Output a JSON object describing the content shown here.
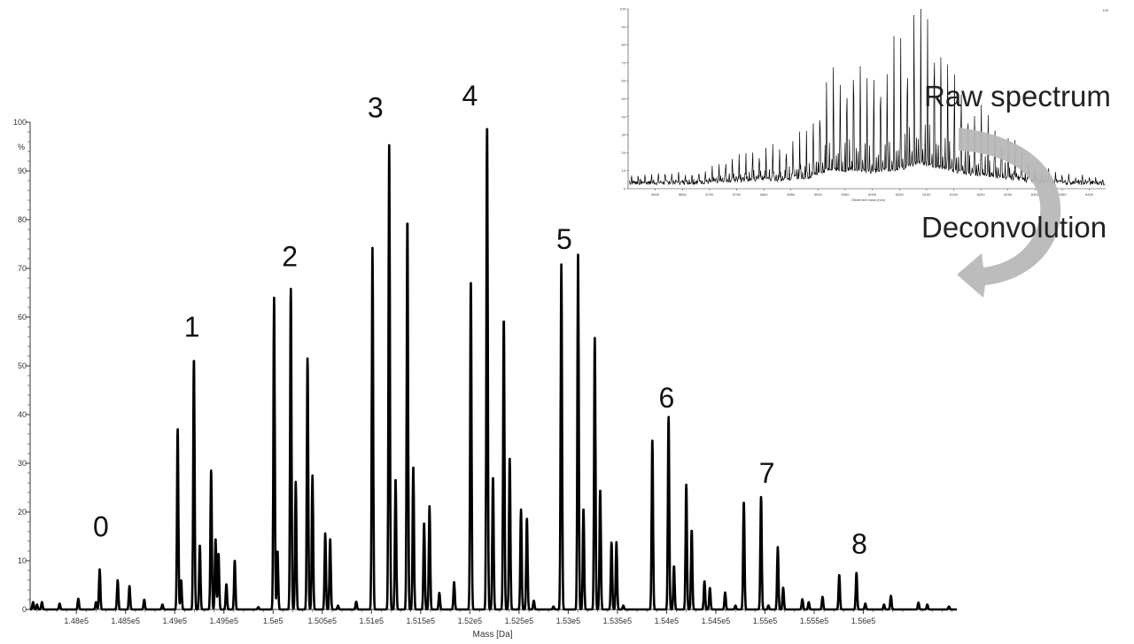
{
  "annotations": {
    "raw_spectrum": "Raw spectrum",
    "deconvolution": "Deconvolution"
  },
  "colors": {
    "trace": "#000000",
    "arrow": "#b8b8b8",
    "axis": "#333333"
  },
  "chart_data": [
    {
      "type": "line",
      "title": "",
      "xlabel": "Mass [Da]",
      "ylabel": "%",
      "xlim": [
        147530,
        156950
      ],
      "ylim": [
        0,
        100
      ],
      "x_ticks": [
        148000,
        148500,
        149000,
        149500,
        150000,
        150500,
        151000,
        151500,
        152000,
        152500,
        153000,
        153500,
        154000,
        154500,
        155000,
        155500,
        156000
      ],
      "x_tick_labels": [
        "1.48e5",
        "1.485e5",
        "1.49e5",
        "1.495e5",
        "1.5e5",
        "1.505e5",
        "1.51e5",
        "1.515e5",
        "1.52e5",
        "1.525e5",
        "1.53e5",
        "1.535e5",
        "1.54e5",
        "1.545e5",
        "1.55e5",
        "1.555e5",
        "1.56e5"
      ],
      "y_ticks": [
        0,
        10,
        20,
        30,
        40,
        50,
        60,
        70,
        80,
        90,
        100
      ],
      "grid": false,
      "peak_group_labels": [
        {
          "text": "0",
          "mass": 148250,
          "y": 15
        },
        {
          "text": "1",
          "mass": 149175,
          "y": 56
        },
        {
          "text": "2",
          "mass": 150170,
          "y": 70.5
        },
        {
          "text": "3",
          "mass": 151040,
          "y": 101
        },
        {
          "text": "4",
          "mass": 152000,
          "y": 103.5
        },
        {
          "text": "5",
          "mass": 152960,
          "y": 74
        },
        {
          "text": "6",
          "mass": 154000,
          "y": 41.5
        },
        {
          "text": "7",
          "mass": 155020,
          "y": 26
        },
        {
          "text": "8",
          "mass": 155960,
          "y": 11.5
        }
      ],
      "peaks": [
        {
          "x": 147560,
          "y": 1.5
        },
        {
          "x": 147600,
          "y": 1.0
        },
        {
          "x": 147650,
          "y": 1.5
        },
        {
          "x": 147830,
          "y": 1.2
        },
        {
          "x": 148020,
          "y": 2.2
        },
        {
          "x": 148200,
          "y": 1.5
        },
        {
          "x": 148237,
          "y": 8.3
        },
        {
          "x": 148420,
          "y": 6.0
        },
        {
          "x": 148540,
          "y": 4.8
        },
        {
          "x": 148690,
          "y": 2.0
        },
        {
          "x": 148875,
          "y": 1.0
        },
        {
          "x": 149030,
          "y": 37.0
        },
        {
          "x": 149065,
          "y": 6.0
        },
        {
          "x": 149195,
          "y": 51.5
        },
        {
          "x": 149255,
          "y": 13.2
        },
        {
          "x": 149370,
          "y": 28.5
        },
        {
          "x": 149415,
          "y": 14.5
        },
        {
          "x": 149445,
          "y": 11.5
        },
        {
          "x": 149525,
          "y": 5.2
        },
        {
          "x": 149610,
          "y": 10.0
        },
        {
          "x": 149850,
          "y": 0.5
        },
        {
          "x": 150010,
          "y": 64.0
        },
        {
          "x": 150045,
          "y": 12.0
        },
        {
          "x": 150180,
          "y": 65.8
        },
        {
          "x": 150230,
          "y": 26.2
        },
        {
          "x": 150350,
          "y": 51.5
        },
        {
          "x": 150400,
          "y": 27.5
        },
        {
          "x": 150530,
          "y": 15.6
        },
        {
          "x": 150580,
          "y": 14.4
        },
        {
          "x": 150660,
          "y": 0.8
        },
        {
          "x": 150845,
          "y": 1.6
        },
        {
          "x": 151010,
          "y": 74.2
        },
        {
          "x": 151180,
          "y": 95.3
        },
        {
          "x": 151245,
          "y": 26.8
        },
        {
          "x": 151365,
          "y": 80.0
        },
        {
          "x": 151425,
          "y": 29.4
        },
        {
          "x": 151535,
          "y": 17.8
        },
        {
          "x": 151590,
          "y": 21.2
        },
        {
          "x": 151690,
          "y": 3.4
        },
        {
          "x": 151840,
          "y": 5.6
        },
        {
          "x": 152010,
          "y": 67.0
        },
        {
          "x": 152175,
          "y": 99.6
        },
        {
          "x": 152235,
          "y": 27.2
        },
        {
          "x": 152345,
          "y": 59.7
        },
        {
          "x": 152405,
          "y": 31.2
        },
        {
          "x": 152520,
          "y": 20.5
        },
        {
          "x": 152580,
          "y": 18.6
        },
        {
          "x": 152650,
          "y": 1.8
        },
        {
          "x": 152850,
          "y": 0.6
        },
        {
          "x": 152930,
          "y": 70.8
        },
        {
          "x": 153100,
          "y": 72.8
        },
        {
          "x": 153155,
          "y": 20.7
        },
        {
          "x": 153270,
          "y": 55.7
        },
        {
          "x": 153325,
          "y": 24.6
        },
        {
          "x": 153440,
          "y": 13.7
        },
        {
          "x": 153490,
          "y": 13.8
        },
        {
          "x": 153560,
          "y": 0.8
        },
        {
          "x": 153855,
          "y": 35.0
        },
        {
          "x": 154020,
          "y": 39.5
        },
        {
          "x": 154075,
          "y": 8.9
        },
        {
          "x": 154200,
          "y": 25.6
        },
        {
          "x": 154255,
          "y": 16.3
        },
        {
          "x": 154385,
          "y": 5.8
        },
        {
          "x": 154440,
          "y": 4.4
        },
        {
          "x": 154595,
          "y": 3.5
        },
        {
          "x": 154700,
          "y": 0.8
        },
        {
          "x": 154785,
          "y": 22.1
        },
        {
          "x": 154960,
          "y": 23.1
        },
        {
          "x": 155035,
          "y": 0.8
        },
        {
          "x": 155130,
          "y": 12.8
        },
        {
          "x": 155185,
          "y": 4.5
        },
        {
          "x": 155380,
          "y": 2.1
        },
        {
          "x": 155445,
          "y": 1.5
        },
        {
          "x": 155585,
          "y": 2.6
        },
        {
          "x": 155755,
          "y": 7.1
        },
        {
          "x": 155930,
          "y": 7.5
        },
        {
          "x": 156020,
          "y": 1.2
        },
        {
          "x": 156210,
          "y": 1.0
        },
        {
          "x": 156280,
          "y": 2.8
        },
        {
          "x": 156560,
          "y": 1.4
        },
        {
          "x": 156650,
          "y": 1.0
        },
        {
          "x": 156870,
          "y": 0.6
        }
      ]
    },
    {
      "type": "line",
      "title": "",
      "xlabel": "Observed mass (m/z)",
      "ylabel": "%",
      "ylim": [
        0,
        100
      ],
      "xlim": [
        5550,
        6430
      ],
      "x_ticks": [
        5600,
        5650,
        5700,
        5750,
        5800,
        5850,
        5900,
        5950,
        6000,
        6050,
        6100,
        6150,
        6200,
        6250,
        6300,
        6350,
        6400
      ],
      "y_ticks": [
        0,
        10,
        20,
        30,
        40,
        50,
        60,
        70,
        80,
        90,
        100
      ],
      "corner_label": "100",
      "peak_envelope": [
        {
          "x": 5560,
          "y": 5
        },
        {
          "x": 5600,
          "y": 5
        },
        {
          "x": 5650,
          "y": 6
        },
        {
          "x": 5700,
          "y": 8
        },
        {
          "x": 5720,
          "y": 12
        },
        {
          "x": 5730,
          "y": 15
        },
        {
          "x": 5760,
          "y": 18
        },
        {
          "x": 5790,
          "y": 21
        },
        {
          "x": 5810,
          "y": 22
        },
        {
          "x": 5830,
          "y": 20
        },
        {
          "x": 5860,
          "y": 30
        },
        {
          "x": 5880,
          "y": 30
        },
        {
          "x": 5900,
          "y": 48
        },
        {
          "x": 5920,
          "y": 66
        },
        {
          "x": 5945,
          "y": 60
        },
        {
          "x": 5970,
          "y": 72
        },
        {
          "x": 5995,
          "y": 55
        },
        {
          "x": 6020,
          "y": 62
        },
        {
          "x": 6040,
          "y": 68
        },
        {
          "x": 6060,
          "y": 75
        },
        {
          "x": 6085,
          "y": 100
        },
        {
          "x": 6105,
          "y": 88
        },
        {
          "x": 6130,
          "y": 75
        },
        {
          "x": 6155,
          "y": 58
        },
        {
          "x": 6180,
          "y": 45
        },
        {
          "x": 6200,
          "y": 45
        },
        {
          "x": 6225,
          "y": 35
        },
        {
          "x": 6250,
          "y": 28
        },
        {
          "x": 6275,
          "y": 20
        },
        {
          "x": 6300,
          "y": 12
        },
        {
          "x": 6330,
          "y": 8
        },
        {
          "x": 6360,
          "y": 5
        },
        {
          "x": 6400,
          "y": 4
        },
        {
          "x": 6420,
          "y": 3
        }
      ]
    }
  ]
}
